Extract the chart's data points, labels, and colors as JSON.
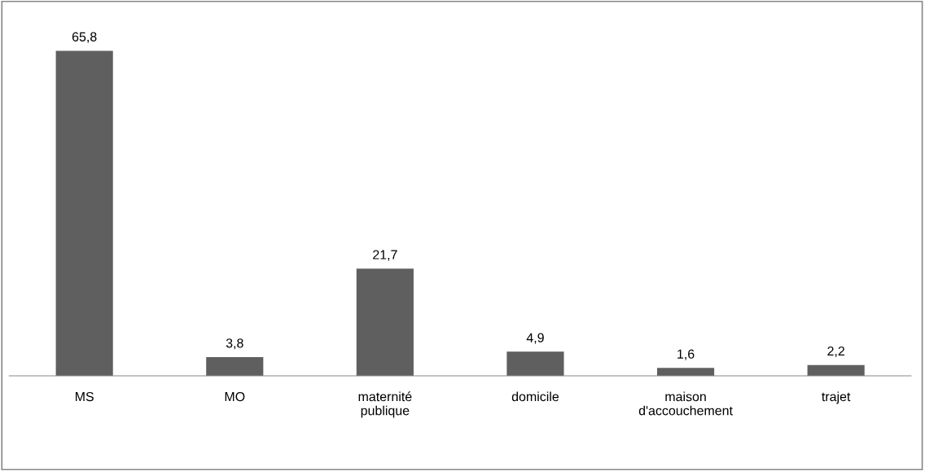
{
  "chart_data": {
    "type": "bar",
    "categories": [
      "MS",
      "MO",
      "maternité\npublique",
      "domicile",
      "maison\nd'accouchement",
      "trajet"
    ],
    "values": [
      65.8,
      3.8,
      21.7,
      4.9,
      1.6,
      2.2
    ],
    "value_labels": [
      "65,8",
      "3,8",
      "21,7",
      "4,9",
      "1,6",
      "2,2"
    ],
    "color": "#5f5f5f",
    "grid": false,
    "legend": false
  }
}
